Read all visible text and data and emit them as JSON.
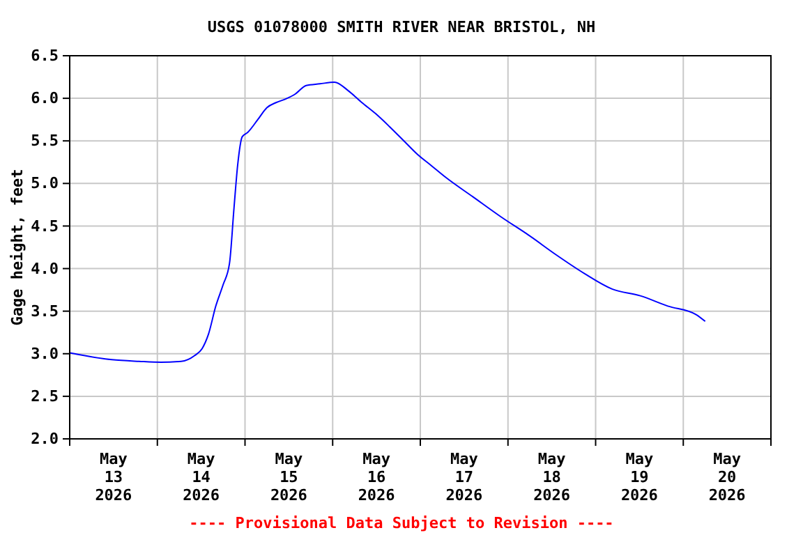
{
  "chart_data": {
    "type": "line",
    "title": "USGS 01078000 SMITH RIVER NEAR BRISTOL, NH",
    "ylabel": "Gage height, feet",
    "annotations": [
      "---- Provisional Data Subject to Revision ----"
    ],
    "x": [
      "2026-05-13T00:00",
      "2026-05-13T11:30",
      "2026-05-13T19:00",
      "2026-05-14T01:00",
      "2026-05-14T06:30",
      "2026-05-14T10:15",
      "2026-05-14T12:15",
      "2026-05-14T14:00",
      "2026-05-14T16:00",
      "2026-05-14T18:00",
      "2026-05-14T19:45",
      "2026-05-14T21:00",
      "2026-05-14T22:00",
      "2026-05-14T23:15",
      "2026-05-15T00:45",
      "2026-05-15T03:30",
      "2026-05-15T06:00",
      "2026-05-15T08:30",
      "2026-05-15T11:00",
      "2026-05-15T13:45",
      "2026-05-15T16:45",
      "2026-05-15T20:30",
      "2026-05-16T00:30",
      "2026-05-16T04:15",
      "2026-05-16T08:00",
      "2026-05-16T11:45",
      "2026-05-16T15:30",
      "2026-05-16T19:30",
      "2026-05-16T23:15",
      "2026-05-17T03:00",
      "2026-05-17T07:00",
      "2026-05-17T14:30",
      "2026-05-17T22:00",
      "2026-05-18T05:45",
      "2026-05-18T13:15",
      "2026-05-18T21:00",
      "2026-05-19T04:30",
      "2026-05-19T12:15",
      "2026-05-19T19:45",
      "2026-05-20T03:30",
      "2026-05-20T06:00"
    ],
    "series": [
      {
        "color": "#0000ff",
        "values": [
          3.01,
          2.93,
          2.91,
          2.9,
          2.91,
          2.98,
          3.06,
          3.23,
          3.56,
          3.81,
          4.06,
          4.72,
          5.22,
          5.55,
          5.6,
          5.75,
          5.89,
          5.95,
          5.99,
          6.05,
          6.15,
          6.17,
          6.19,
          6.09,
          5.95,
          5.82,
          5.67,
          5.5,
          5.34,
          5.21,
          5.07,
          4.84,
          4.61,
          4.39,
          4.16,
          3.94,
          3.76,
          3.68,
          3.56,
          3.46,
          3.38
        ]
      }
    ],
    "xlim": [
      "2026-05-13T00:00",
      "2026-05-21T00:00"
    ],
    "xticks": [
      {
        "value": "2026-05-13T00:00",
        "label": null
      },
      {
        "value": "2026-05-13T12:00",
        "label": "May 13 2026"
      },
      {
        "value": "2026-05-14T00:00",
        "label": null
      },
      {
        "value": "2026-05-14T12:00",
        "label": "May 14 2026"
      },
      {
        "value": "2026-05-15T00:00",
        "label": null
      },
      {
        "value": "2026-05-15T12:00",
        "label": "May 15 2026"
      },
      {
        "value": "2026-05-16T00:00",
        "label": null
      },
      {
        "value": "2026-05-16T12:00",
        "label": "May 16 2026"
      },
      {
        "value": "2026-05-17T00:00",
        "label": null
      },
      {
        "value": "2026-05-17T12:00",
        "label": "May 17 2026"
      },
      {
        "value": "2026-05-18T00:00",
        "label": null
      },
      {
        "value": "2026-05-18T12:00",
        "label": "May 18 2026"
      },
      {
        "value": "2026-05-19T00:00",
        "label": null
      },
      {
        "value": "2026-05-19T12:00",
        "label": "May 19 2026"
      },
      {
        "value": "2026-05-20T00:00",
        "label": null
      },
      {
        "value": "2026-05-20T12:00",
        "label": "May 20 2026"
      },
      {
        "value": "2026-05-21T00:00",
        "label": null
      }
    ],
    "ylim": [
      2.0,
      6.5
    ],
    "yticks": [
      {
        "value": 2.0,
        "label": "2.0"
      },
      {
        "value": 2.5,
        "label": "2.5"
      },
      {
        "value": 3.0,
        "label": "3.0"
      },
      {
        "value": 3.5,
        "label": "3.5"
      },
      {
        "value": 4.0,
        "label": "4.0"
      },
      {
        "value": 4.5,
        "label": "4.5"
      },
      {
        "value": 5.0,
        "label": "5.0"
      },
      {
        "value": 5.5,
        "label": "5.5"
      },
      {
        "value": 6.0,
        "label": "6.0"
      },
      {
        "value": 6.5,
        "label": "6.5"
      }
    ],
    "grid": true,
    "marker": "none",
    "line_style": "solid"
  }
}
